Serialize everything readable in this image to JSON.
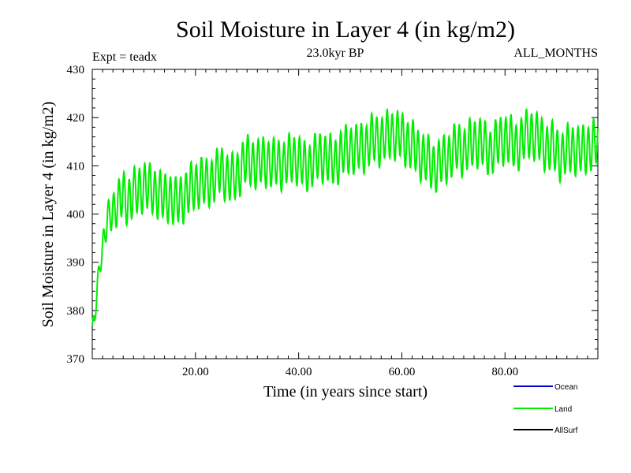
{
  "chart_data": {
    "type": "line",
    "title": "Soil Moisture in Layer 4 (in kg/m2)",
    "experiment": "Expt = teadx",
    "period": "23.0kyr BP",
    "months": "ALL_MONTHS",
    "xlabel": "Time (in years since start)",
    "ylabel": "Soil Moisture in Layer 4 (in kg/m2)",
    "xlim": [
      0,
      98
    ],
    "ylim": [
      370,
      430
    ],
    "x_ticks": [
      20,
      40,
      60,
      80
    ],
    "x_tick_labels": [
      "20.00",
      "40.00",
      "60.00",
      "80.00"
    ],
    "y_ticks": [
      370,
      380,
      390,
      400,
      410,
      420,
      430
    ],
    "y_tick_labels": [
      "370",
      "380",
      "390",
      "400",
      "410",
      "420",
      "430"
    ],
    "series": [
      {
        "name": "Ocean",
        "color": "#0000cc",
        "values": []
      },
      {
        "name": "Land",
        "color": "#00ee00",
        "x": [
          0,
          0.5,
          1,
          1.5,
          2,
          2.5,
          3,
          4,
          5,
          6,
          7,
          8,
          9,
          10,
          11,
          12,
          13,
          14,
          15,
          16,
          17,
          18,
          19,
          20,
          21,
          22,
          23,
          24,
          25,
          26,
          27,
          28,
          29,
          30,
          31,
          32,
          33,
          34,
          35,
          36,
          37,
          38,
          39,
          40,
          41,
          42,
          43,
          44,
          45,
          46,
          47,
          48,
          49,
          50,
          51,
          52,
          53,
          54,
          55,
          56,
          57,
          58,
          59,
          60,
          61,
          62,
          63,
          64,
          65,
          66,
          67,
          68,
          69,
          70,
          71,
          72,
          73,
          74,
          75,
          76,
          77,
          78,
          79,
          80,
          81,
          82,
          83,
          84,
          85,
          86,
          87,
          88,
          89,
          90,
          91,
          92,
          93,
          94,
          95,
          96,
          97,
          98
        ],
        "values": [
          376,
          379,
          385,
          390,
          393,
          396,
          399,
          401,
          402,
          404,
          403,
          404,
          405,
          406,
          405,
          405,
          404,
          403,
          404,
          402,
          403,
          404,
          405,
          406,
          407,
          406,
          407,
          408,
          409,
          408,
          407,
          408,
          410,
          411,
          411,
          410,
          411,
          411,
          410,
          411,
          410,
          411,
          412,
          411,
          410,
          410,
          411,
          412,
          412,
          411,
          411,
          412,
          413,
          414,
          413,
          414,
          414,
          415,
          416,
          415,
          416,
          417,
          416,
          416,
          415,
          414,
          413,
          412,
          411,
          410,
          410,
          411,
          412,
          413,
          414,
          413,
          414,
          415,
          415,
          414,
          413,
          414,
          415,
          416,
          415,
          414,
          415,
          416,
          417,
          416,
          415,
          414,
          414,
          413,
          412,
          413,
          414,
          413,
          413,
          414,
          414,
          415
        ]
      },
      {
        "name": "AllSurf",
        "color": "#000000",
        "values": []
      }
    ]
  }
}
